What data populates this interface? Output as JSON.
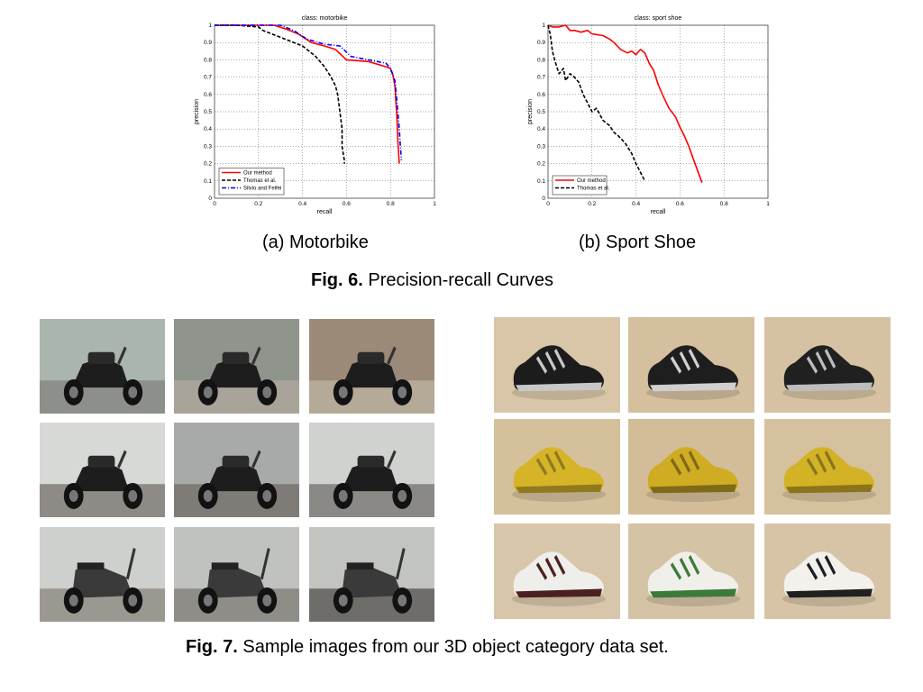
{
  "chart_data": [
    {
      "type": "line",
      "title": "class: motorbike",
      "xlabel": "recall",
      "ylabel": "precision",
      "xlim": [
        0,
        1
      ],
      "ylim": [
        0,
        1
      ],
      "xticks": [
        "0",
        "0.2",
        "0.4",
        "0.6",
        "0.8",
        "1"
      ],
      "yticks": [
        "0",
        "0.1",
        "0.2",
        "0.3",
        "0.4",
        "0.5",
        "0.6",
        "0.7",
        "0.8",
        "0.9",
        "1"
      ],
      "grid": true,
      "legend_position": "bottom-left",
      "series": [
        {
          "name": "Our method",
          "color": "#ff0000",
          "dash": "solid",
          "x": [
            0,
            0.1,
            0.2,
            0.27,
            0.32,
            0.38,
            0.44,
            0.5,
            0.55,
            0.6,
            0.7,
            0.78,
            0.8,
            0.81,
            0.82,
            0.83,
            0.835,
            0.84
          ],
          "y": [
            1,
            1,
            1,
            1,
            0.98,
            0.95,
            0.9,
            0.88,
            0.86,
            0.8,
            0.79,
            0.76,
            0.75,
            0.72,
            0.65,
            0.45,
            0.3,
            0.2
          ]
        },
        {
          "name": "Thomas et al.",
          "color": "#000000",
          "dash": "dashed",
          "x": [
            0,
            0.1,
            0.2,
            0.22,
            0.3,
            0.4,
            0.46,
            0.5,
            0.53,
            0.55,
            0.56,
            0.57,
            0.58,
            0.58,
            0.59,
            0.59
          ],
          "y": [
            1,
            1,
            0.99,
            0.97,
            0.93,
            0.88,
            0.82,
            0.76,
            0.7,
            0.65,
            0.6,
            0.5,
            0.4,
            0.3,
            0.22,
            0.2
          ]
        },
        {
          "name": "Silvio and Feifei",
          "color": "#0000ff",
          "dash": "dashdot",
          "x": [
            0,
            0.1,
            0.2,
            0.3,
            0.36,
            0.42,
            0.5,
            0.57,
            0.62,
            0.7,
            0.78,
            0.8,
            0.82,
            0.83,
            0.84,
            0.845,
            0.85
          ],
          "y": [
            1,
            1,
            1,
            1,
            0.97,
            0.92,
            0.89,
            0.88,
            0.82,
            0.8,
            0.78,
            0.75,
            0.68,
            0.55,
            0.4,
            0.3,
            0.22
          ]
        }
      ]
    },
    {
      "type": "line",
      "title": "class: sport shoe",
      "xlabel": "recall",
      "ylabel": "precision",
      "xlim": [
        0,
        1
      ],
      "ylim": [
        0,
        1
      ],
      "xticks": [
        "0",
        "0.2",
        "0.4",
        "0.6",
        "0.8",
        "1"
      ],
      "yticks": [
        "0",
        "0.1",
        "0.2",
        "0.3",
        "0.4",
        "0.5",
        "0.6",
        "0.7",
        "0.8",
        "0.9",
        "1"
      ],
      "grid": true,
      "legend_position": "bottom-left",
      "series": [
        {
          "name": "Our method",
          "color": "#ff0000",
          "dash": "solid",
          "x": [
            0,
            0.02,
            0.05,
            0.08,
            0.1,
            0.12,
            0.15,
            0.18,
            0.2,
            0.25,
            0.28,
            0.3,
            0.33,
            0.36,
            0.38,
            0.4,
            0.42,
            0.44,
            0.46,
            0.48,
            0.5,
            0.52,
            0.55,
            0.58,
            0.6,
            0.62,
            0.64,
            0.66,
            0.68,
            0.7
          ],
          "y": [
            1,
            0.99,
            0.99,
            1,
            0.97,
            0.97,
            0.96,
            0.97,
            0.95,
            0.94,
            0.92,
            0.9,
            0.86,
            0.84,
            0.85,
            0.83,
            0.86,
            0.84,
            0.78,
            0.74,
            0.66,
            0.6,
            0.52,
            0.47,
            0.41,
            0.36,
            0.3,
            0.23,
            0.16,
            0.09
          ]
        },
        {
          "name": "Thomas et al.",
          "color": "#000000",
          "dash": "dashed",
          "x": [
            0,
            0.01,
            0.02,
            0.03,
            0.05,
            0.07,
            0.08,
            0.1,
            0.12,
            0.14,
            0.16,
            0.18,
            0.2,
            0.22,
            0.25,
            0.28,
            0.3,
            0.32,
            0.35,
            0.38,
            0.4,
            0.42,
            0.44
          ],
          "y": [
            1,
            0.95,
            0.85,
            0.8,
            0.72,
            0.75,
            0.68,
            0.72,
            0.7,
            0.67,
            0.6,
            0.55,
            0.5,
            0.52,
            0.45,
            0.42,
            0.38,
            0.36,
            0.32,
            0.26,
            0.2,
            0.15,
            0.1
          ]
        }
      ]
    }
  ],
  "captions": {
    "sub_a": "(a) Motorbike",
    "sub_b": "(b) Sport Shoe",
    "fig6_label": "Fig. 6.",
    "fig6_text": " Precision-recall Curves",
    "fig7_label": "Fig. 7.",
    "fig7_text": " Sample images from our 3D object category data set."
  },
  "photos": {
    "motorbikes": [
      {
        "kind": "motorbike",
        "bg": "#aab5ad",
        "ground": "#8d908a"
      },
      {
        "kind": "motorbike",
        "bg": "#8f958c",
        "ground": "#a8a49a"
      },
      {
        "kind": "motorbike",
        "bg": "#9b8a78",
        "ground": "#b5aa98"
      },
      {
        "kind": "motorbike",
        "bg": "#d7d9d6",
        "ground": "#8e8a86"
      },
      {
        "kind": "motorbike",
        "bg": "#a7aaa8",
        "ground": "#7f7c78"
      },
      {
        "kind": "motorbike",
        "bg": "#cfd2cf",
        "ground": "#8a8985"
      },
      {
        "kind": "scooter",
        "bg": "#cdd0cc",
        "ground": "#9b9892"
      },
      {
        "kind": "scooter",
        "bg": "#bfc2be",
        "ground": "#8f8d88"
      },
      {
        "kind": "scooter",
        "bg": "#c2c4c0",
        "ground": "#6f6d69"
      }
    ],
    "shoes": [
      {
        "kind": "shoe",
        "bg": "#d9c6a8",
        "body": "#1c1c1c",
        "accent": "#c8c8c8"
      },
      {
        "kind": "shoe",
        "bg": "#d4bf9f",
        "body": "#1e1e1e",
        "accent": "#d0d0d0"
      },
      {
        "kind": "shoe",
        "bg": "#d6c2a3",
        "body": "#202020",
        "accent": "#bdbdbd"
      },
      {
        "kind": "shoe",
        "bg": "#d5c09c",
        "body": "#d6b427",
        "accent": "#8f7a1e"
      },
      {
        "kind": "shoe",
        "bg": "#d2bd98",
        "body": "#d0ac23",
        "accent": "#7f6a18"
      },
      {
        "kind": "shoe",
        "bg": "#d6c19e",
        "body": "#d3b226",
        "accent": "#8a741c"
      },
      {
        "kind": "shoe",
        "bg": "#d8c6aa",
        "body": "#eeeeea",
        "accent": "#4a2020"
      },
      {
        "kind": "shoe",
        "bg": "#d5c3a6",
        "body": "#f0efea",
        "accent": "#3c7a3c"
      },
      {
        "kind": "shoe",
        "bg": "#d7c4a7",
        "body": "#f2f1ec",
        "accent": "#202020"
      }
    ]
  }
}
